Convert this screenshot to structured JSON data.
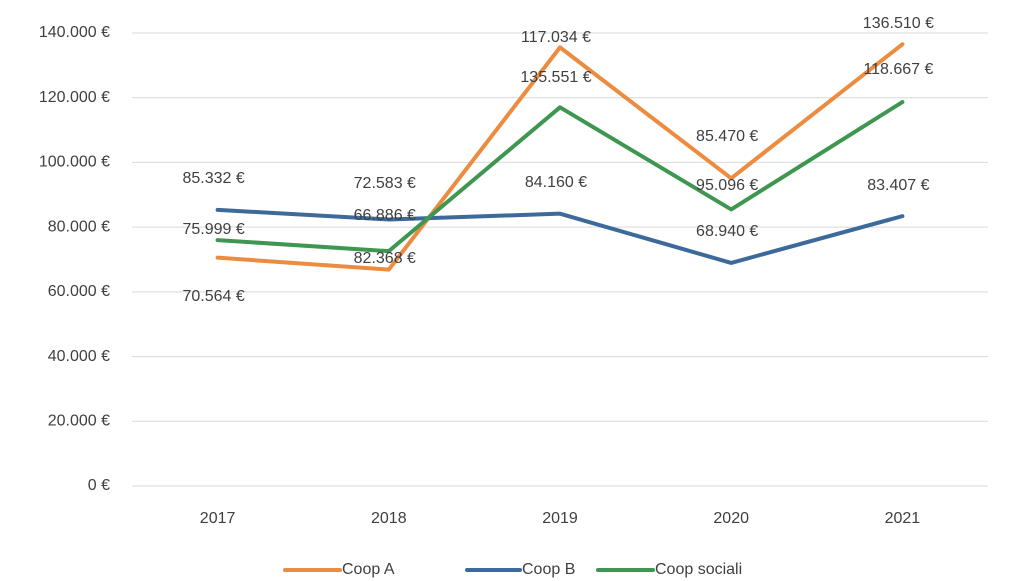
{
  "chart_data": {
    "type": "line",
    "categories": [
      "2017",
      "2018",
      "2019",
      "2020",
      "2021"
    ],
    "series": [
      {
        "name": "Coop A",
        "color": "#ed8b3f",
        "values": [
          70564,
          66886,
          135551,
          95096,
          136510
        ],
        "value_labels": [
          "70.564 €",
          "66.886 €",
          "135.551 €",
          "95.096 €",
          "136.510 €"
        ]
      },
      {
        "name": "Coop B",
        "color": "#3d6a9a",
        "values": [
          85332,
          82368,
          84160,
          68940,
          83407
        ],
        "value_labels": [
          "85.332 €",
          "82.368 €",
          "84.160 €",
          "68.940 €",
          "83.407 €"
        ]
      },
      {
        "name": "Coop sociali",
        "color": "#3e9651",
        "values": [
          75999,
          72583,
          117034,
          85470,
          118667
        ],
        "value_labels": [
          "75.999 €",
          "72.583 €",
          "117.034 €",
          "85.470 €",
          "118.667 €"
        ]
      }
    ],
    "ylim": [
      0,
      140000
    ],
    "yticks": [
      {
        "value": 0,
        "label": "0 €"
      },
      {
        "value": 20000,
        "label": "20.000 €"
      },
      {
        "value": 40000,
        "label": "40.000 €"
      },
      {
        "value": 60000,
        "label": "60.000 €"
      },
      {
        "value": 80000,
        "label": "80.000 €"
      },
      {
        "value": 100000,
        "label": "100.000 €"
      },
      {
        "value": 120000,
        "label": "120.000 €"
      },
      {
        "value": 140000,
        "label": "140.000 €"
      }
    ],
    "grid": true,
    "legend": "bottom"
  }
}
